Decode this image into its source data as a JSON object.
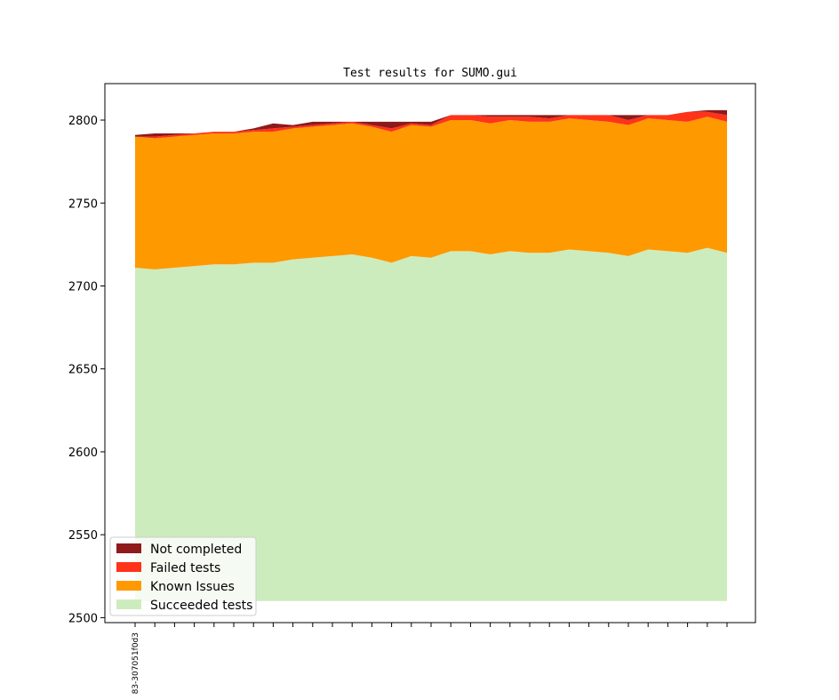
{
  "chart_data": {
    "type": "area",
    "stacked": true,
    "title": "Test results for SUMO.gui",
    "xlabel": "",
    "ylabel": "",
    "ylim": [
      2497,
      2822
    ],
    "yticks": [
      2500,
      2550,
      2600,
      2650,
      2700,
      2750,
      2800
    ],
    "baseline": 2510,
    "x_tick_labels": [
      "83-307051f0d3"
    ],
    "grid": false,
    "legend_position": "lower-left",
    "stack_totals": {
      "succeeded": [
        2711,
        2710,
        2711,
        2712,
        2713,
        2713,
        2714,
        2714,
        2716,
        2717,
        2718,
        2719,
        2717,
        2714,
        2718,
        2717,
        2721,
        2721,
        2719,
        2721,
        2720,
        2720,
        2722,
        2721,
        2720,
        2718,
        2722,
        2721,
        2720,
        2723,
        2720
      ],
      "known_issues": [
        2790,
        2789,
        2790,
        2791,
        2792,
        2792,
        2793,
        2793,
        2795,
        2796,
        2797,
        2798,
        2796,
        2793,
        2797,
        2796,
        2800,
        2800,
        2798,
        2800,
        2799,
        2799,
        2801,
        2800,
        2799,
        2797,
        2801,
        2800,
        2799,
        2802,
        2799
      ],
      "failed": [
        2790,
        2790,
        2791,
        2792,
        2793,
        2793,
        2794,
        2795,
        2796,
        2797,
        2798,
        2799,
        2797,
        2795,
        2798,
        2797,
        2803,
        2803,
        2802,
        2802,
        2802,
        2801,
        2803,
        2803,
        2803,
        2800,
        2803,
        2803,
        2805,
        2805,
        2803
      ],
      "not_completed": [
        2791,
        2792,
        2792,
        2792,
        2793,
        2793,
        2795,
        2798,
        2797,
        2799,
        2799,
        2799,
        2799,
        2799,
        2799,
        2799,
        2803,
        2803,
        2803,
        2803,
        2803,
        2803,
        2803,
        2803,
        2803,
        2803,
        2803,
        2803,
        2805,
        2806,
        2806
      ]
    },
    "series": [
      {
        "name": "Not completed",
        "color": "#8f1a1a",
        "key": "not_completed"
      },
      {
        "name": "Failed tests",
        "color": "#ff331a",
        "key": "failed"
      },
      {
        "name": "Known Issues",
        "color": "#ff9900",
        "key": "known_issues"
      },
      {
        "name": "Succeeded tests",
        "color": "#cdecbe",
        "key": "succeeded"
      }
    ]
  }
}
